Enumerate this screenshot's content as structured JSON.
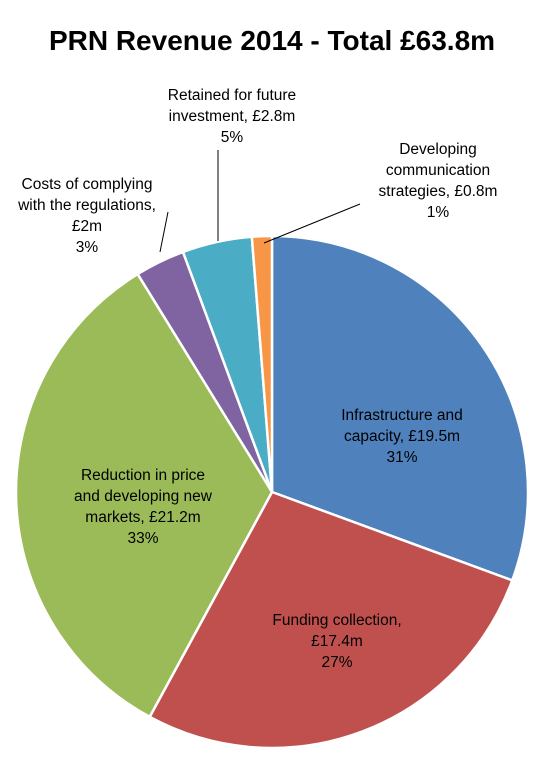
{
  "chart_data": {
    "type": "pie",
    "title": "PRN Revenue 2014 - Total £63.8m",
    "unit": "£m",
    "slices": [
      {
        "lines": [
          "Infrastructure and",
          "capacity, £19.5m",
          "31%"
        ],
        "value": 19.5,
        "percent": 31,
        "color": "#4F81BD"
      },
      {
        "lines": [
          "Funding collection,",
          "£17.4m",
          "27%"
        ],
        "value": 17.4,
        "percent": 27,
        "color": "#C0504D"
      },
      {
        "lines": [
          "Reduction in price",
          "and developing new",
          "markets, £21.2m",
          "33%"
        ],
        "value": 21.2,
        "percent": 33,
        "color": "#9BBB59"
      },
      {
        "lines": [
          "Costs of complying",
          "with the regulations,",
          "£2m",
          "3%"
        ],
        "value": 2.0,
        "percent": 3,
        "color": "#8064A2"
      },
      {
        "lines": [
          "Retained for future",
          "investment, £2.8m",
          "5%"
        ],
        "value": 2.8,
        "percent": 5,
        "color": "#4BACC6"
      },
      {
        "lines": [
          "Developing",
          "communication",
          "strategies, £0.8m",
          "1%"
        ],
        "value": 0.8,
        "percent": 1,
        "color": "#F79646"
      }
    ]
  }
}
